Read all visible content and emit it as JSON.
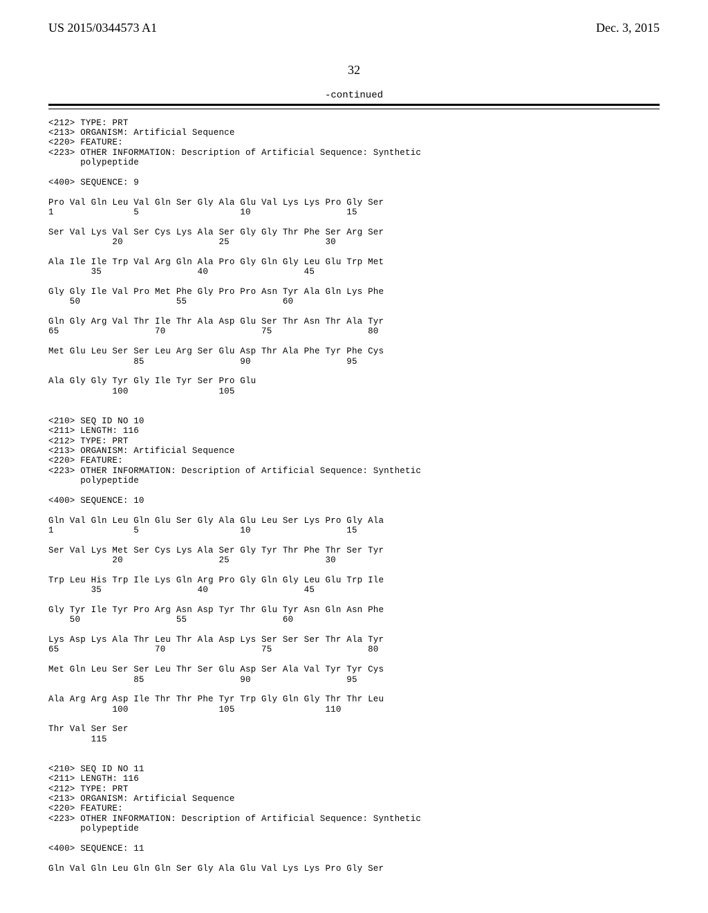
{
  "header": {
    "pub_number": "US 2015/0344573 A1",
    "pub_date": "Dec. 3, 2015",
    "page_number": "32",
    "continued": "-continued"
  },
  "colors": {
    "background": "#ffffff",
    "text": "#000000",
    "rule": "#000000"
  },
  "font": {
    "body_family": "Times New Roman",
    "seq_family": "Courier New",
    "header_size_pt": 13,
    "seq_size_pt": 9.5
  },
  "seq_block_1": {
    "meta": [
      "<212> TYPE: PRT",
      "<213> ORGANISM: Artificial Sequence",
      "<220> FEATURE:",
      "<223> OTHER INFORMATION: Description of Artificial Sequence: Synthetic",
      "      polypeptide",
      "",
      "<400> SEQUENCE: 9"
    ],
    "lines": [
      "Pro Val Gln Leu Val Gln Ser Gly Ala Glu Val Lys Lys Pro Gly Ser",
      "1               5                   10                  15",
      "",
      "Ser Val Lys Val Ser Cys Lys Ala Ser Gly Gly Thr Phe Ser Arg Ser",
      "            20                  25                  30",
      "",
      "Ala Ile Ile Trp Val Arg Gln Ala Pro Gly Gln Gly Leu Glu Trp Met",
      "        35                  40                  45",
      "",
      "Gly Gly Ile Val Pro Met Phe Gly Pro Pro Asn Tyr Ala Gln Lys Phe",
      "    50                  55                  60",
      "",
      "Gln Gly Arg Val Thr Ile Thr Ala Asp Glu Ser Thr Asn Thr Ala Tyr",
      "65                  70                  75                  80",
      "",
      "Met Glu Leu Ser Ser Leu Arg Ser Glu Asp Thr Ala Phe Tyr Phe Cys",
      "                85                  90                  95",
      "",
      "Ala Gly Gly Tyr Gly Ile Tyr Ser Pro Glu",
      "            100                 105"
    ]
  },
  "seq_block_2": {
    "meta": [
      "<210> SEQ ID NO 10",
      "<211> LENGTH: 116",
      "<212> TYPE: PRT",
      "<213> ORGANISM: Artificial Sequence",
      "<220> FEATURE:",
      "<223> OTHER INFORMATION: Description of Artificial Sequence: Synthetic",
      "      polypeptide",
      "",
      "<400> SEQUENCE: 10"
    ],
    "lines": [
      "Gln Val Gln Leu Gln Glu Ser Gly Ala Glu Leu Ser Lys Pro Gly Ala",
      "1               5                   10                  15",
      "",
      "Ser Val Lys Met Ser Cys Lys Ala Ser Gly Tyr Thr Phe Thr Ser Tyr",
      "            20                  25                  30",
      "",
      "Trp Leu His Trp Ile Lys Gln Arg Pro Gly Gln Gly Leu Glu Trp Ile",
      "        35                  40                  45",
      "",
      "Gly Tyr Ile Tyr Pro Arg Asn Asp Tyr Thr Glu Tyr Asn Gln Asn Phe",
      "    50                  55                  60",
      "",
      "Lys Asp Lys Ala Thr Leu Thr Ala Asp Lys Ser Ser Ser Thr Ala Tyr",
      "65                  70                  75                  80",
      "",
      "Met Gln Leu Ser Ser Leu Thr Ser Glu Asp Ser Ala Val Tyr Tyr Cys",
      "                85                  90                  95",
      "",
      "Ala Arg Arg Asp Ile Thr Thr Phe Tyr Trp Gly Gln Gly Thr Thr Leu",
      "            100                 105                 110",
      "",
      "Thr Val Ser Ser",
      "        115"
    ]
  },
  "seq_block_3": {
    "meta": [
      "<210> SEQ ID NO 11",
      "<211> LENGTH: 116",
      "<212> TYPE: PRT",
      "<213> ORGANISM: Artificial Sequence",
      "<220> FEATURE:",
      "<223> OTHER INFORMATION: Description of Artificial Sequence: Synthetic",
      "      polypeptide",
      "",
      "<400> SEQUENCE: 11"
    ],
    "lines": [
      "Gln Val Gln Leu Gln Gln Ser Gly Ala Glu Val Lys Lys Pro Gly Ser"
    ]
  }
}
